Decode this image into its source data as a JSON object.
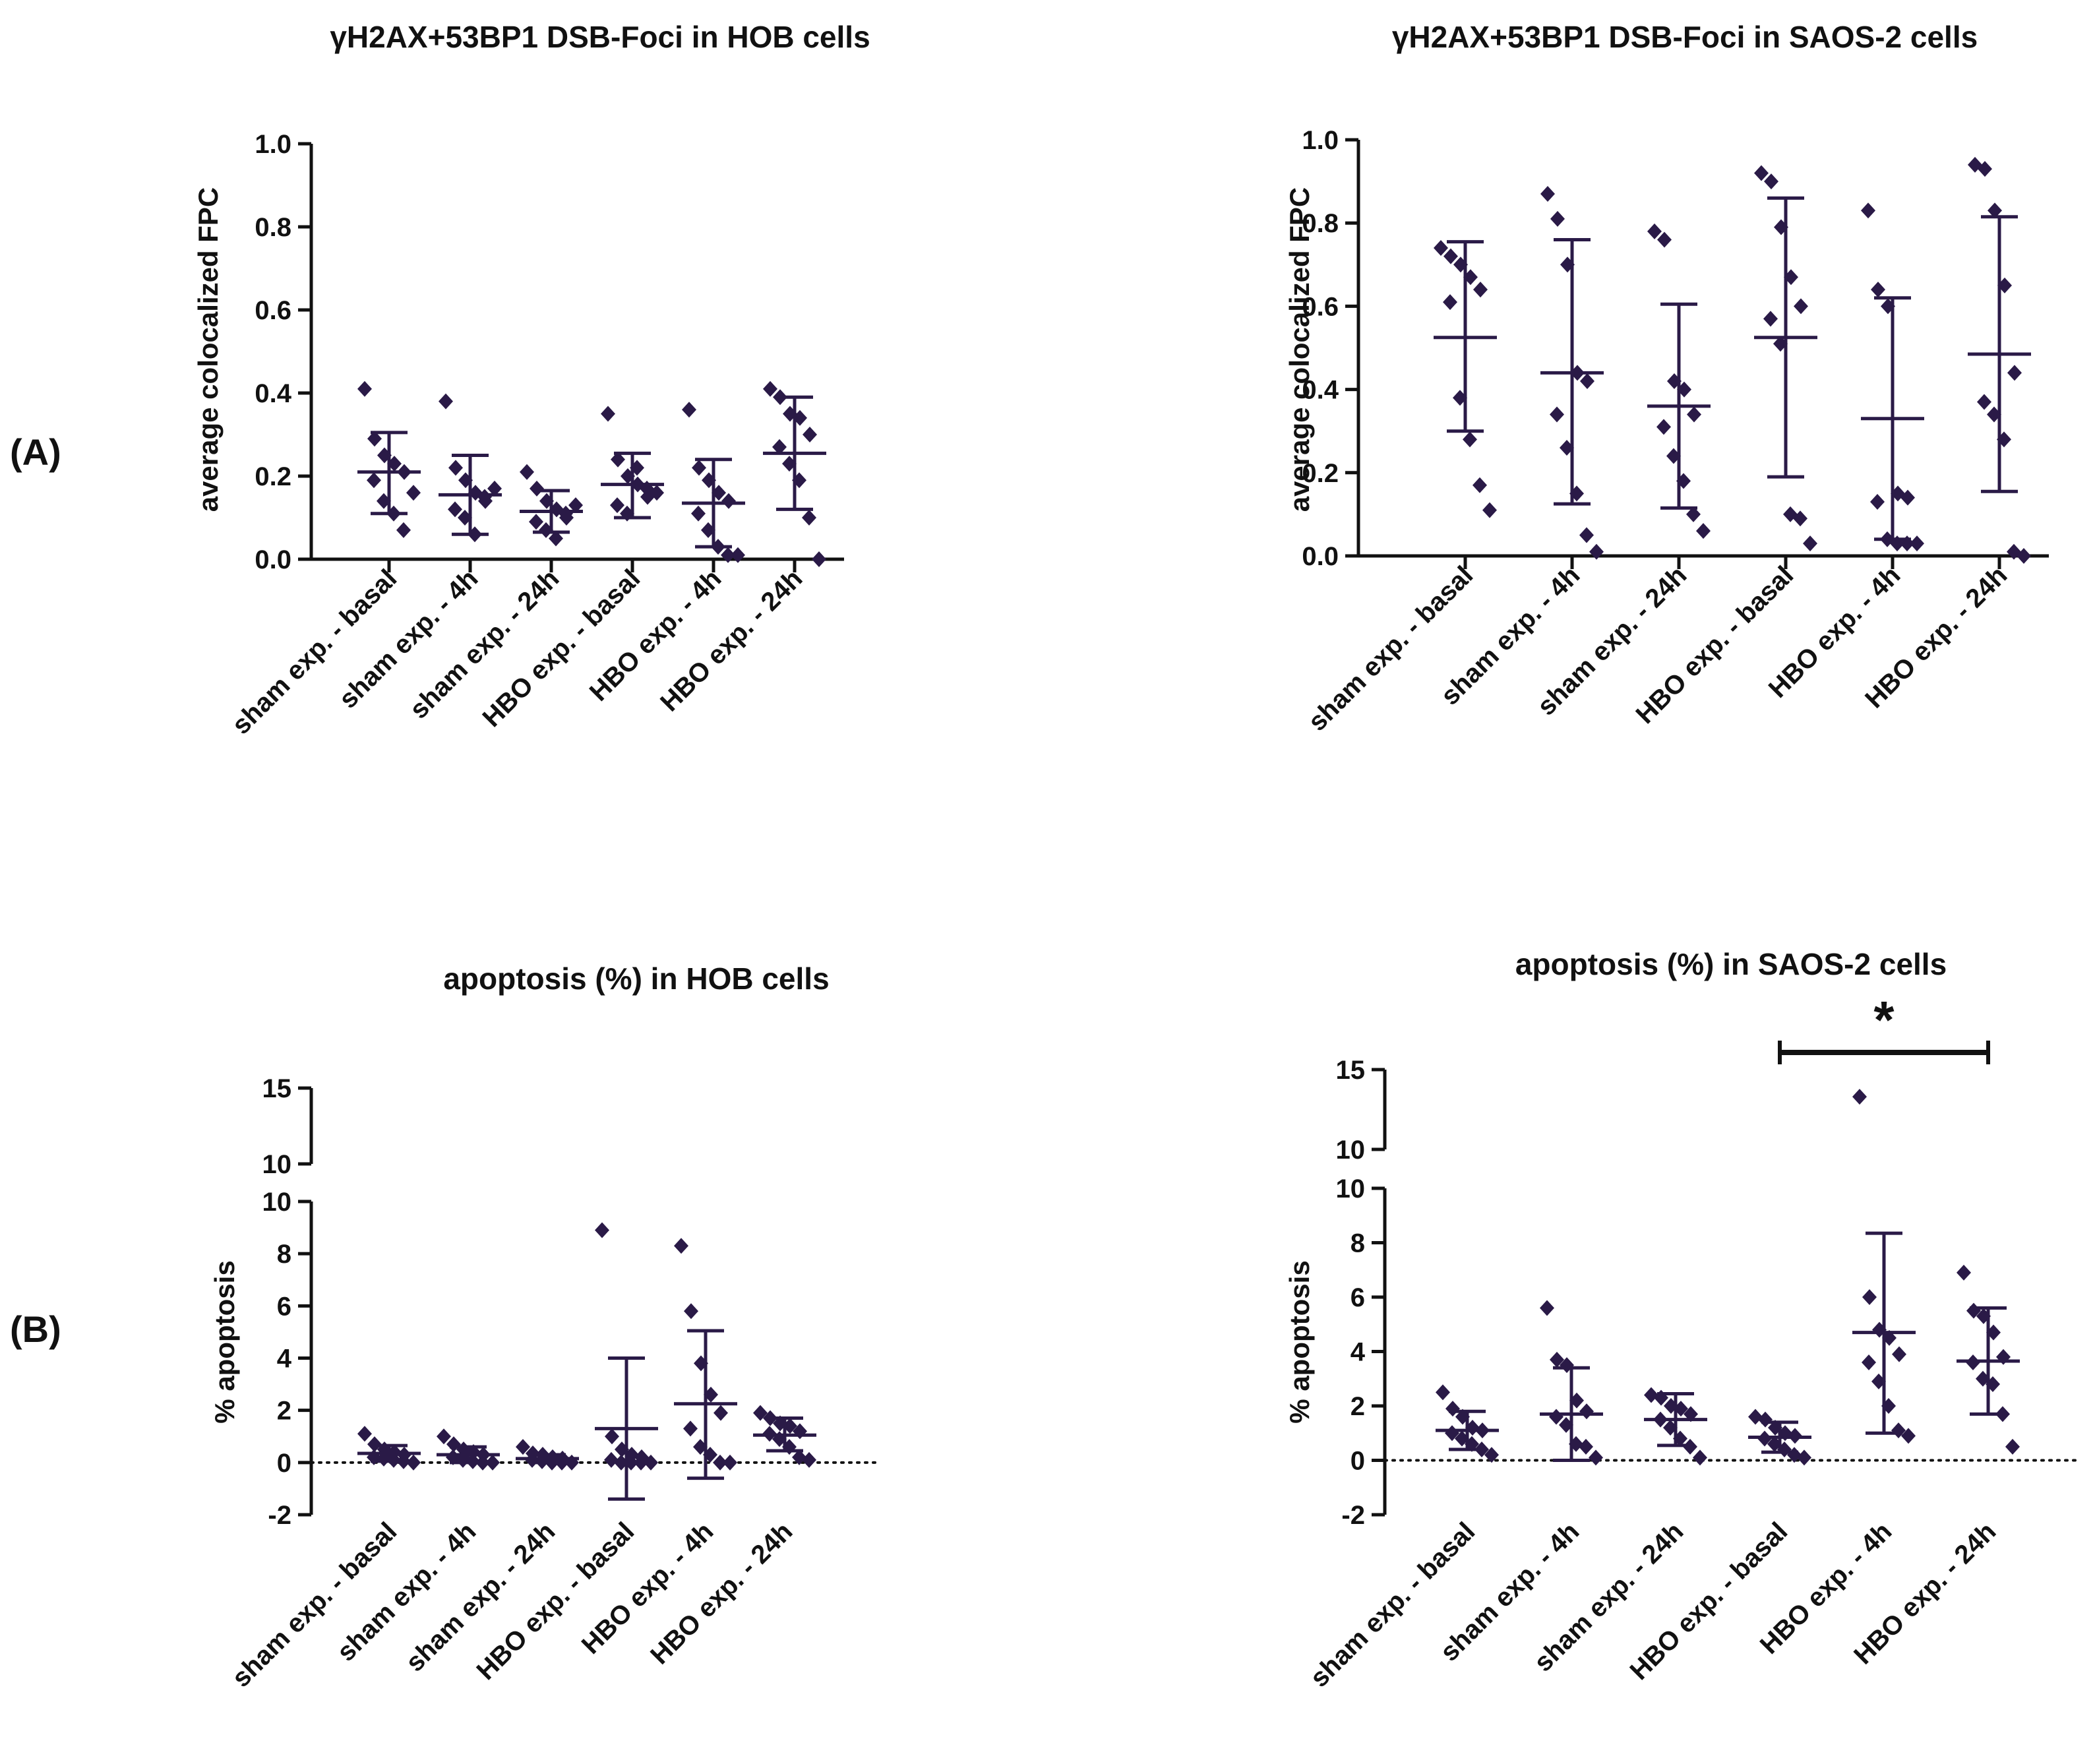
{
  "figure": {
    "row_labels": [
      "(A)",
      "(B)"
    ]
  },
  "colors": {
    "marker": "#2a1a47",
    "axis": "#111111",
    "text": "#111111"
  },
  "chart_data": [
    {
      "id": "hob-foci",
      "type": "scatter",
      "title": "γH2AX+53BP1 DSB-Foci in HOB cells",
      "ylabel": "average colocalized FPC",
      "xlabel": "",
      "categories": [
        "sham exp. - basal",
        "sham exp. - 4h",
        "sham exp. - 24h",
        "HBO exp. - basal",
        "HBO exp. - 4h",
        "HBO exp. - 24h"
      ],
      "ylim": [
        0,
        1.0
      ],
      "yticks": [
        0.0,
        0.2,
        0.4,
        0.6,
        0.8,
        1.0
      ],
      "ytick_labels": [
        "0.0",
        "0.2",
        "0.4",
        "0.6",
        "0.8",
        "1.0"
      ],
      "mean": [
        0.21,
        0.155,
        0.115,
        0.18,
        0.135,
        0.255
      ],
      "sd_low": [
        0.11,
        0.06,
        0.065,
        0.1,
        0.03,
        0.12
      ],
      "sd_high": [
        0.305,
        0.25,
        0.165,
        0.255,
        0.24,
        0.39
      ],
      "points": [
        [
          0.41,
          0.29,
          0.25,
          0.23,
          0.21,
          0.19,
          0.14,
          0.11,
          0.07,
          0.16
        ],
        [
          0.38,
          0.22,
          0.19,
          0.16,
          0.14,
          0.12,
          0.1,
          0.06,
          0.15,
          0.17
        ],
        [
          0.21,
          0.17,
          0.14,
          0.12,
          0.1,
          0.09,
          0.07,
          0.05,
          0.11,
          0.13
        ],
        [
          0.35,
          0.24,
          0.2,
          0.18,
          0.15,
          0.13,
          0.11,
          0.22,
          0.17,
          0.16
        ],
        [
          0.36,
          0.22,
          0.19,
          0.16,
          0.14,
          0.11,
          0.07,
          0.03,
          0.01,
          0.01
        ],
        [
          0.41,
          0.39,
          0.35,
          0.34,
          0.3,
          0.27,
          0.23,
          0.19,
          0.1,
          0.0
        ]
      ]
    },
    {
      "id": "saos-foci",
      "type": "scatter",
      "title": "γH2AX+53BP1 DSB-Foci in SAOS-2 cells",
      "ylabel": "average colocalized FPC",
      "xlabel": "",
      "categories": [
        "sham exp. - basal",
        "sham exp. - 4h",
        "sham exp. - 24h",
        "HBO exp. - basal",
        "HBO exp. - 4h",
        "HBO exp. - 24h"
      ],
      "ylim": [
        0,
        1.0
      ],
      "yticks": [
        0.0,
        0.2,
        0.4,
        0.6,
        0.8,
        1.0
      ],
      "ytick_labels": [
        "0.0",
        "0.2",
        "0.4",
        "0.6",
        "0.8",
        "1.0"
      ],
      "mean": [
        0.525,
        0.44,
        0.36,
        0.525,
        0.33,
        0.485
      ],
      "sd_low": [
        0.3,
        0.125,
        0.115,
        0.19,
        0.04,
        0.155
      ],
      "sd_high": [
        0.755,
        0.76,
        0.605,
        0.86,
        0.62,
        0.815
      ],
      "points": [
        [
          0.74,
          0.72,
          0.7,
          0.67,
          0.64,
          0.61,
          0.38,
          0.28,
          0.17,
          0.11
        ],
        [
          0.87,
          0.81,
          0.7,
          0.44,
          0.42,
          0.34,
          0.26,
          0.15,
          0.05,
          0.01
        ],
        [
          0.78,
          0.76,
          0.42,
          0.4,
          0.34,
          0.31,
          0.24,
          0.18,
          0.1,
          0.06
        ],
        [
          0.92,
          0.9,
          0.79,
          0.67,
          0.6,
          0.57,
          0.51,
          0.1,
          0.09,
          0.03
        ],
        [
          0.83,
          0.64,
          0.6,
          0.15,
          0.14,
          0.13,
          0.04,
          0.03,
          0.03,
          0.03
        ],
        [
          0.94,
          0.93,
          0.83,
          0.65,
          0.44,
          0.37,
          0.34,
          0.28,
          0.01,
          0.0
        ]
      ]
    },
    {
      "id": "hob-apoptosis",
      "type": "scatter",
      "title": "apoptosis (%) in HOB cells",
      "ylabel": "% apoptosis",
      "xlabel": "",
      "categories": [
        "sham exp. - basal",
        "sham exp. - 4h",
        "sham exp. - 24h",
        "HBO exp. - basal",
        "HBO exp. - 4h",
        "HBO exp. - 24h"
      ],
      "ylim": [
        -2,
        10
      ],
      "ylim_upper_segment": [
        10,
        15
      ],
      "broken_axis": true,
      "yticks": [
        -2,
        0,
        2,
        4,
        6,
        8,
        10
      ],
      "ytick_labels": [
        "-2",
        "0",
        "2",
        "4",
        "6",
        "8",
        "10"
      ],
      "yticks_upper": [
        10,
        15
      ],
      "ytick_labels_upper": [
        "10",
        "15"
      ],
      "mean": [
        0.35,
        0.3,
        0.15,
        1.3,
        2.25,
        1.05
      ],
      "sd_low": [
        0.05,
        0.0,
        0.0,
        -1.4,
        -0.6,
        0.45
      ],
      "sd_high": [
        0.65,
        0.6,
        0.3,
        4.0,
        5.05,
        1.7
      ],
      "points": [
        [
          1.1,
          0.7,
          0.5,
          0.4,
          0.3,
          0.2,
          0.15,
          0.1,
          0.05,
          0.0
        ],
        [
          1.0,
          0.7,
          0.5,
          0.4,
          0.3,
          0.2,
          0.1,
          0.05,
          0.0,
          0.0
        ],
        [
          0.6,
          0.35,
          0.3,
          0.2,
          0.15,
          0.1,
          0.05,
          0.0,
          0.0,
          0.0
        ],
        [
          8.9,
          1.0,
          0.5,
          0.3,
          0.2,
          0.1,
          0.0,
          0.0,
          0.0,
          0.0
        ],
        [
          8.3,
          5.8,
          3.8,
          2.6,
          1.9,
          1.3,
          0.6,
          0.3,
          0.0,
          0.0
        ],
        [
          1.9,
          1.7,
          1.5,
          1.4,
          1.2,
          1.1,
          0.9,
          0.6,
          0.2,
          0.1
        ]
      ]
    },
    {
      "id": "saos-apoptosis",
      "type": "scatter",
      "title": "apoptosis (%) in SAOS-2 cells",
      "ylabel": "% apoptosis",
      "xlabel": "",
      "categories": [
        "sham exp. - basal",
        "sham exp. - 4h",
        "sham exp. - 24h",
        "HBO exp. - basal",
        "HBO exp. - 4h",
        "HBO exp. - 24h"
      ],
      "ylim": [
        -2,
        10
      ],
      "ylim_upper_segment": [
        10,
        15
      ],
      "broken_axis": true,
      "yticks": [
        -2,
        0,
        2,
        4,
        6,
        8,
        10
      ],
      "ytick_labels": [
        "-2",
        "0",
        "2",
        "4",
        "6",
        "8",
        "10"
      ],
      "yticks_upper": [
        10,
        15
      ],
      "ytick_labels_upper": [
        "10",
        "15"
      ],
      "mean": [
        1.1,
        1.7,
        1.5,
        0.85,
        4.7,
        3.65
      ],
      "sd_low": [
        0.4,
        0.0,
        0.55,
        0.3,
        1.0,
        1.7
      ],
      "sd_high": [
        1.8,
        3.4,
        2.45,
        1.4,
        8.35,
        5.6
      ],
      "points": [
        [
          2.5,
          1.9,
          1.6,
          1.2,
          1.1,
          1.0,
          0.8,
          0.6,
          0.4,
          0.2
        ],
        [
          5.6,
          3.7,
          3.5,
          2.2,
          1.8,
          1.6,
          1.3,
          0.6,
          0.5,
          0.1
        ],
        [
          2.4,
          2.3,
          2.0,
          1.9,
          1.7,
          1.5,
          1.2,
          0.8,
          0.5,
          0.1
        ],
        [
          1.6,
          1.5,
          1.2,
          1.0,
          0.9,
          0.8,
          0.6,
          0.4,
          0.2,
          0.1
        ],
        [
          13.3,
          6.0,
          4.8,
          4.5,
          3.9,
          3.6,
          2.9,
          2.0,
          1.1,
          0.9
        ],
        [
          6.9,
          5.5,
          5.3,
          4.7,
          3.8,
          3.6,
          3.0,
          2.8,
          1.7,
          0.5
        ]
      ],
      "significance": [
        {
          "from_category": 3,
          "to_category": 5,
          "label": "*",
          "level_value": 15.6
        }
      ]
    }
  ]
}
